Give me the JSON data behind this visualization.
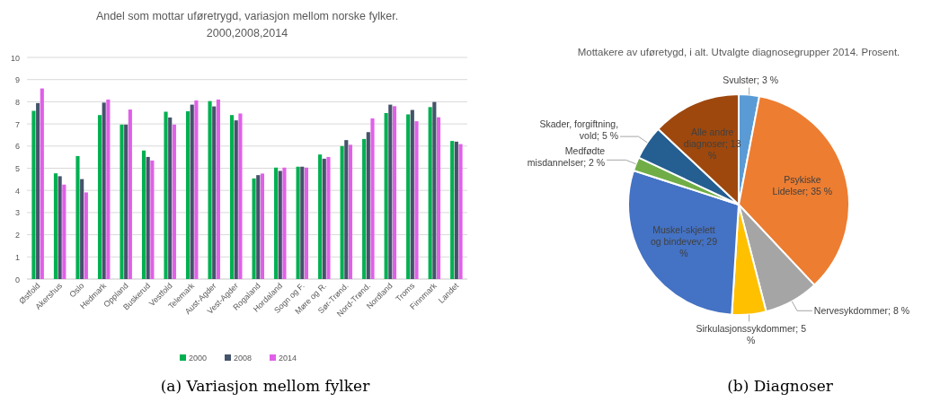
{
  "chart_data": [
    {
      "type": "bar",
      "title": "Andel som mottar uføretrygd, variasjon mellom norske fylker.",
      "subtitle": "2000,2008,2014",
      "categories": [
        "Østfold",
        "Akershus",
        "Oslo",
        "Hedmark",
        "Oppland",
        "Buskerud",
        "Vestfold",
        "Telemark",
        "Aust-Agder",
        "Vest-Agder",
        "Rogaland",
        "Hordaland",
        "Sogn og F.",
        "Møre og R.",
        "Sør-Trønd.",
        "Nord-Trønd.",
        "Nordland",
        "Troms",
        "Finnmark",
        "Landet"
      ],
      "series": [
        {
          "name": "2000",
          "color": "#00b050",
          "values": [
            7.59,
            4.77,
            5.55,
            7.4,
            6.97,
            5.8,
            7.55,
            7.57,
            8.03,
            7.4,
            4.54,
            5.03,
            5.07,
            5.62,
            6.0,
            6.32,
            7.49,
            7.43,
            7.76,
            6.23
          ]
        },
        {
          "name": "2008",
          "color": "#44546a",
          "values": [
            7.94,
            4.64,
            4.51,
            7.96,
            6.97,
            5.51,
            7.29,
            7.87,
            7.79,
            7.16,
            4.69,
            4.88,
            5.07,
            5.43,
            6.27,
            6.63,
            7.87,
            7.63,
            7.99,
            6.2
          ]
        },
        {
          "name": "2014",
          "color": "#e060e8",
          "values": [
            8.6,
            4.26,
            3.91,
            8.1,
            7.65,
            5.35,
            6.97,
            8.06,
            8.1,
            7.47,
            4.76,
            5.03,
            5.03,
            5.51,
            6.06,
            7.25,
            7.8,
            7.12,
            7.3,
            6.09
          ]
        }
      ],
      "ylim": [
        0,
        10
      ],
      "yticks": [
        0,
        1,
        2,
        3,
        4,
        5,
        6,
        7,
        8,
        9,
        10
      ],
      "grid": "y",
      "legend": "bottom",
      "annotations": [
        "(a) Variasjon mellom fylker"
      ]
    },
    {
      "type": "pie",
      "title": "Mottakere av uføretygd, i alt. Utvalgte diagnosegrupper 2014. Prosent.",
      "categories": [
        "Svulster",
        "Psykiske Lidelser",
        "Nervesykdommer",
        "Sirkulasjonssykdommer",
        "Muskel-skjelett og bindevev",
        "Medfødte misdannelser",
        "Skader, forgiftning, vold",
        "Alle andre diagnoser"
      ],
      "values": [
        3,
        35,
        8,
        5,
        29,
        2,
        5,
        13
      ],
      "value_labels": [
        "3 %",
        "35 %",
        "8 %",
        "5 %",
        "29 %",
        "2 %",
        "5 %",
        "13 %"
      ],
      "colors": [
        "#5b9bd5",
        "#ed7d31",
        "#a5a5a5",
        "#ffc000",
        "#4472c4",
        "#70ad47",
        "#255e91",
        "#9e480e"
      ],
      "annotations": [
        "(b) Diagnoser"
      ]
    }
  ]
}
